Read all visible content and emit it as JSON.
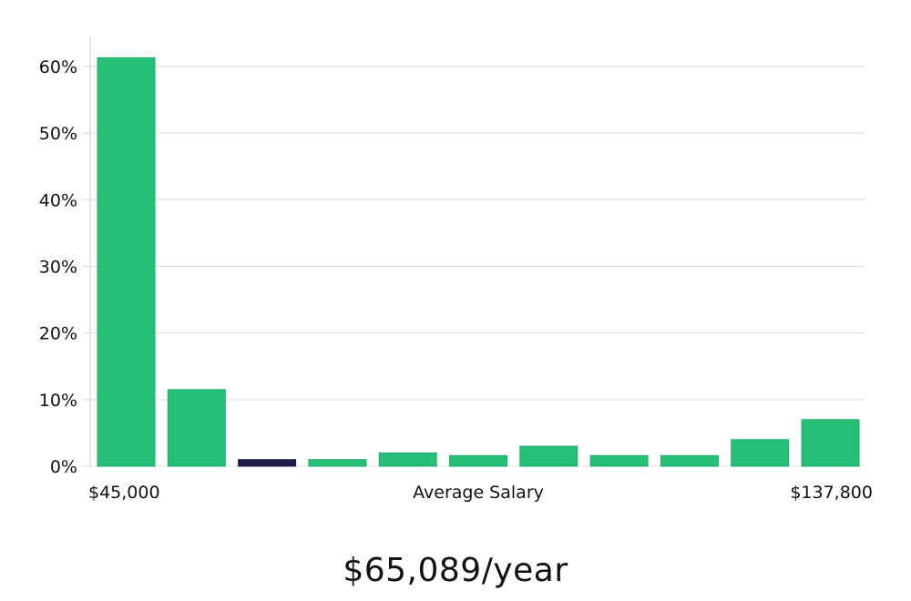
{
  "chart_data": {
    "type": "bar",
    "xlabel": "Average Salary",
    "x_range_labels": {
      "min": "$45,000",
      "max": "$137,800"
    },
    "ylabel": "",
    "ylim": [
      0,
      65
    ],
    "y_ticks": [
      0,
      10,
      20,
      30,
      40,
      50,
      60
    ],
    "y_tick_suffix": "%",
    "grid": true,
    "colors": {
      "default_bar": "#27bf78",
      "default_bar_edge": "#1fae69",
      "highlight_bar": "#1f1d4a"
    },
    "bins": [
      {
        "value": 61.3,
        "highlight": false
      },
      {
        "value": 11.5,
        "highlight": false
      },
      {
        "value": 1.0,
        "highlight": true
      },
      {
        "value": 1.0,
        "highlight": false
      },
      {
        "value": 2.0,
        "highlight": false
      },
      {
        "value": 1.6,
        "highlight": false
      },
      {
        "value": 3.0,
        "highlight": false
      },
      {
        "value": 1.6,
        "highlight": false
      },
      {
        "value": 1.6,
        "highlight": false
      },
      {
        "value": 4.0,
        "highlight": false
      },
      {
        "value": 7.0,
        "highlight": false
      }
    ]
  },
  "caption": {
    "salary_text": "$65,089/year"
  }
}
